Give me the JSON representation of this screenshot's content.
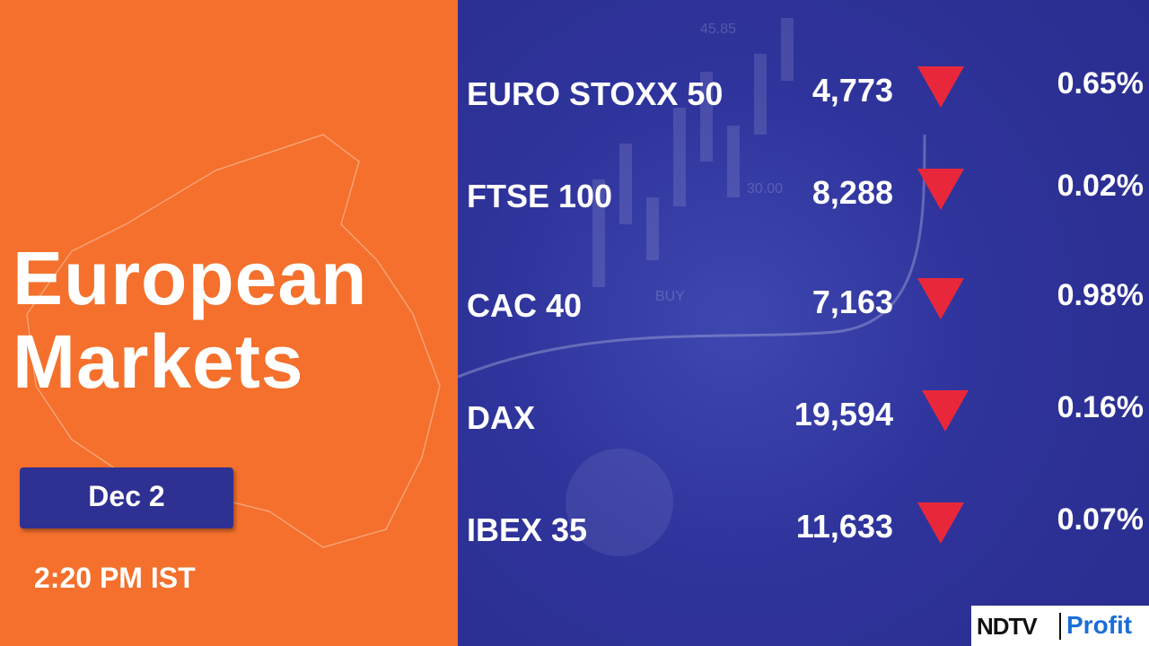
{
  "header": {
    "title_lines": [
      "European",
      "Markets"
    ],
    "date": "Dec 2",
    "time": "2:20 PM IST"
  },
  "table": {
    "rows": [
      {
        "name": "EURO STOXX 50",
        "value": "4,773",
        "change": "0.65%"
      },
      {
        "name": "FTSE 100",
        "value": "8,288",
        "change": "0.02%"
      },
      {
        "name": "CAC 40",
        "value": "7,163",
        "change": "0.98%"
      },
      {
        "name": "DAX",
        "value": "19,594",
        "change": "0.16%"
      },
      {
        "name": "IBEX 35",
        "value": "11,633",
        "change": "0.07%"
      }
    ]
  },
  "background_labels": [
    "45.85",
    "30.00",
    "BUY"
  ],
  "logo": {
    "brand": "NDTV",
    "product": "Profit"
  }
}
